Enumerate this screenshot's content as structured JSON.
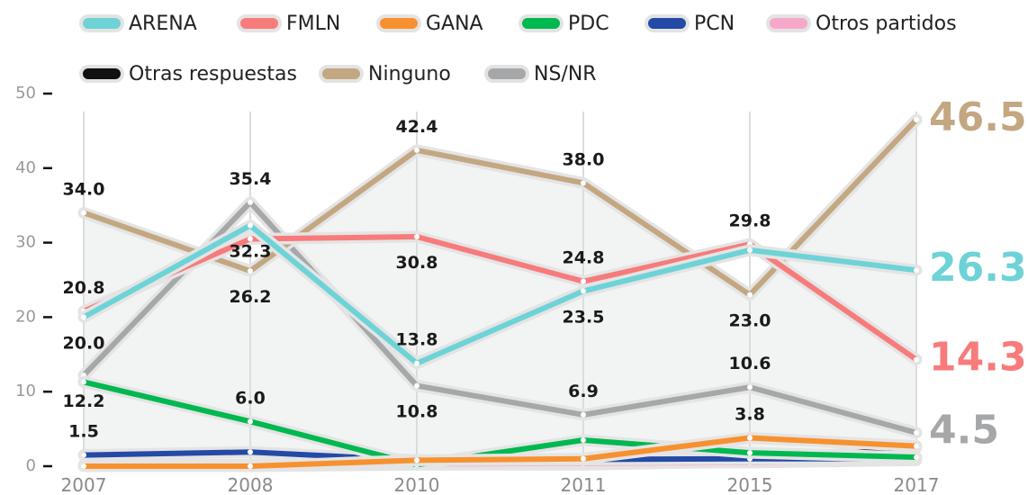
{
  "chart_data": {
    "type": "line",
    "categories": [
      "2007",
      "2008",
      "2010",
      "2011",
      "2015",
      "2017"
    ],
    "ylim": [
      0,
      50
    ],
    "yticks": [
      0,
      10,
      20,
      30,
      40,
      50
    ],
    "series": [
      {
        "name": "ARENA",
        "color": "#6dd3d6",
        "values": [
          20.0,
          32.3,
          13.8,
          23.5,
          29.0,
          26.3
        ],
        "value_labels": [
          "20.0",
          "32.3",
          "13.8",
          "23.5",
          null,
          "26.3"
        ]
      },
      {
        "name": "FMLN",
        "color": "#f77b7b",
        "values": [
          20.8,
          30.5,
          30.8,
          24.8,
          29.8,
          14.3
        ],
        "value_labels": [
          "20.8",
          null,
          "30.8",
          "24.8",
          "29.8",
          "14.3"
        ]
      },
      {
        "name": "GANA",
        "color": "#f7912f",
        "values": [
          0,
          0,
          0.8,
          1.0,
          3.8,
          2.7
        ],
        "value_labels": [
          null,
          null,
          null,
          null,
          "3.8",
          null
        ]
      },
      {
        "name": "PDC",
        "color": "#00b850",
        "values": [
          11.3,
          6.0,
          0.2,
          3.5,
          1.8,
          1.2
        ],
        "value_labels": [
          null,
          "6.0",
          null,
          null,
          null,
          null
        ]
      },
      {
        "name": "PCN",
        "color": "#2449a6",
        "values": [
          1.5,
          1.9,
          0.8,
          0.9,
          1.0,
          1.0
        ],
        "value_labels": [
          "1.5",
          null,
          null,
          null,
          null,
          null
        ]
      },
      {
        "name": "Otros partidos",
        "color": "#f6a8cb",
        "values": [
          0.2,
          0.2,
          0.3,
          0.4,
          0.5,
          0.8
        ],
        "value_labels": [
          null,
          null,
          null,
          null,
          null,
          null
        ]
      },
      {
        "name": "Otras respuestas",
        "color": "#111111",
        "values": [
          0,
          0,
          0.2,
          0.2,
          0.6,
          2.5
        ],
        "value_labels": [
          null,
          null,
          null,
          null,
          null,
          null
        ]
      },
      {
        "name": "Ninguno",
        "color": "#c3a781",
        "values": [
          34.0,
          26.2,
          42.4,
          38.0,
          23.0,
          46.5
        ],
        "value_labels": [
          "34.0",
          "26.2",
          "42.4",
          "38.0",
          "23.0",
          "46.5"
        ]
      },
      {
        "name": "NS/NR",
        "color": "#a6a7a9",
        "values": [
          12.2,
          35.4,
          10.8,
          6.9,
          10.6,
          4.5
        ],
        "value_labels": [
          "12.2",
          "35.4",
          "10.8",
          "6.9",
          "10.6",
          "4.5"
        ]
      }
    ]
  }
}
